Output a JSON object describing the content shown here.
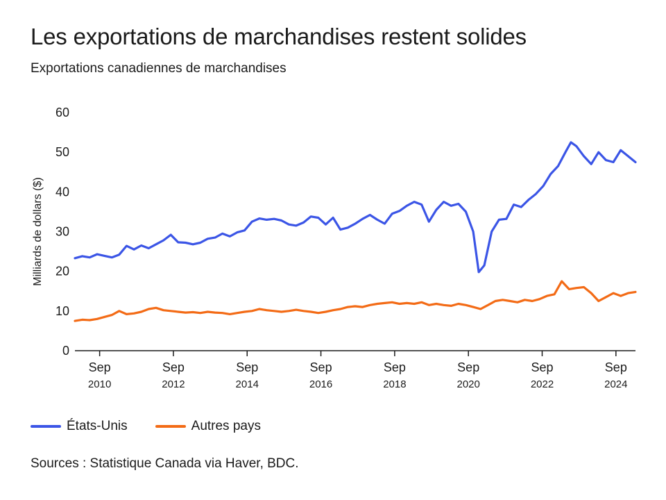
{
  "header": {
    "title": "Les exportations de marchandises restent solides",
    "subtitle": "Exportations canadiennes de marchandises"
  },
  "source": "Sources : Statistique Canada via Haver, BDC.",
  "chart_data": {
    "type": "line",
    "ylabel": "Milliards de dollars ($)",
    "ylim": [
      0,
      60
    ],
    "y_ticks": [
      "0",
      "10",
      "20",
      "30",
      "40",
      "50",
      "60"
    ],
    "x_ticks": [
      {
        "month": "Sep",
        "year": "2010",
        "x": 2010.67
      },
      {
        "month": "Sep",
        "year": "2012",
        "x": 2012.67
      },
      {
        "month": "Sep",
        "year": "2014",
        "x": 2014.67
      },
      {
        "month": "Sep",
        "year": "2016",
        "x": 2016.67
      },
      {
        "month": "Sep",
        "year": "2018",
        "x": 2018.67
      },
      {
        "month": "Sep",
        "year": "2020",
        "x": 2020.67
      },
      {
        "month": "Sep",
        "year": "2022",
        "x": 2022.67
      },
      {
        "month": "Sep",
        "year": "2024",
        "x": 2024.67
      }
    ],
    "xlim": [
      2010.0,
      2025.2
    ],
    "grid": false,
    "legend_position": "bottom-left",
    "series": [
      {
        "name": "États-Unis",
        "color": "#3b55e6",
        "points": [
          [
            2010.0,
            23.3
          ],
          [
            2010.2,
            23.8
          ],
          [
            2010.4,
            23.5
          ],
          [
            2010.6,
            24.3
          ],
          [
            2010.8,
            23.9
          ],
          [
            2011.0,
            23.5
          ],
          [
            2011.2,
            24.2
          ],
          [
            2011.4,
            26.4
          ],
          [
            2011.6,
            25.5
          ],
          [
            2011.8,
            26.5
          ],
          [
            2012.0,
            25.8
          ],
          [
            2012.2,
            26.8
          ],
          [
            2012.4,
            27.8
          ],
          [
            2012.6,
            29.2
          ],
          [
            2012.8,
            27.3
          ],
          [
            2013.0,
            27.2
          ],
          [
            2013.2,
            26.8
          ],
          [
            2013.4,
            27.2
          ],
          [
            2013.6,
            28.2
          ],
          [
            2013.8,
            28.5
          ],
          [
            2014.0,
            29.5
          ],
          [
            2014.2,
            28.8
          ],
          [
            2014.4,
            29.8
          ],
          [
            2014.6,
            30.3
          ],
          [
            2014.8,
            32.5
          ],
          [
            2015.0,
            33.3
          ],
          [
            2015.2,
            33.0
          ],
          [
            2015.4,
            33.2
          ],
          [
            2015.6,
            32.8
          ],
          [
            2015.8,
            31.8
          ],
          [
            2016.0,
            31.5
          ],
          [
            2016.2,
            32.3
          ],
          [
            2016.4,
            33.8
          ],
          [
            2016.6,
            33.5
          ],
          [
            2016.8,
            31.8
          ],
          [
            2017.0,
            33.5
          ],
          [
            2017.2,
            30.5
          ],
          [
            2017.4,
            31.0
          ],
          [
            2017.6,
            32.0
          ],
          [
            2017.8,
            33.2
          ],
          [
            2018.0,
            34.2
          ],
          [
            2018.2,
            33.0
          ],
          [
            2018.4,
            32.0
          ],
          [
            2018.6,
            34.5
          ],
          [
            2018.8,
            35.2
          ],
          [
            2019.0,
            36.5
          ],
          [
            2019.2,
            37.5
          ],
          [
            2019.4,
            36.8
          ],
          [
            2019.6,
            32.5
          ],
          [
            2019.8,
            35.5
          ],
          [
            2020.0,
            37.5
          ],
          [
            2020.2,
            36.5
          ],
          [
            2020.4,
            37.0
          ],
          [
            2020.6,
            35.0
          ],
          [
            2020.8,
            30.0
          ],
          [
            2020.95,
            19.8
          ],
          [
            2021.1,
            21.5
          ],
          [
            2021.3,
            30.0
          ],
          [
            2021.5,
            33.0
          ],
          [
            2021.7,
            33.2
          ],
          [
            2021.9,
            36.8
          ],
          [
            2022.1,
            36.2
          ],
          [
            2022.3,
            38.0
          ],
          [
            2022.5,
            39.5
          ],
          [
            2022.7,
            41.5
          ],
          [
            2022.9,
            44.5
          ],
          [
            2023.1,
            46.5
          ],
          [
            2023.3,
            50.0
          ],
          [
            2023.45,
            52.5
          ],
          [
            2023.6,
            51.5
          ],
          [
            2023.8,
            49.0
          ],
          [
            2024.0,
            47.0
          ],
          [
            2024.2,
            50.0
          ],
          [
            2024.4,
            48.0
          ],
          [
            2024.6,
            47.5
          ],
          [
            2024.8,
            50.5
          ],
          [
            2025.0,
            49.0
          ],
          [
            2025.2,
            47.5
          ]
        ]
      },
      {
        "name": "Autres pays",
        "color": "#f36b16",
        "points": [
          [
            2010.0,
            7.5
          ],
          [
            2010.2,
            7.8
          ],
          [
            2010.4,
            7.7
          ],
          [
            2010.6,
            8.0
          ],
          [
            2010.8,
            8.5
          ],
          [
            2011.0,
            9.0
          ],
          [
            2011.2,
            10.0
          ],
          [
            2011.4,
            9.2
          ],
          [
            2011.6,
            9.4
          ],
          [
            2011.8,
            9.8
          ],
          [
            2012.0,
            10.5
          ],
          [
            2012.2,
            10.8
          ],
          [
            2012.4,
            10.2
          ],
          [
            2012.6,
            10.0
          ],
          [
            2012.8,
            9.8
          ],
          [
            2013.0,
            9.6
          ],
          [
            2013.2,
            9.7
          ],
          [
            2013.4,
            9.5
          ],
          [
            2013.6,
            9.8
          ],
          [
            2013.8,
            9.6
          ],
          [
            2014.0,
            9.5
          ],
          [
            2014.2,
            9.2
          ],
          [
            2014.4,
            9.5
          ],
          [
            2014.6,
            9.8
          ],
          [
            2014.8,
            10.0
          ],
          [
            2015.0,
            10.5
          ],
          [
            2015.2,
            10.2
          ],
          [
            2015.4,
            10.0
          ],
          [
            2015.6,
            9.8
          ],
          [
            2015.8,
            10.0
          ],
          [
            2016.0,
            10.3
          ],
          [
            2016.2,
            10.0
          ],
          [
            2016.4,
            9.8
          ],
          [
            2016.6,
            9.5
          ],
          [
            2016.8,
            9.8
          ],
          [
            2017.0,
            10.2
          ],
          [
            2017.2,
            10.5
          ],
          [
            2017.4,
            11.0
          ],
          [
            2017.6,
            11.2
          ],
          [
            2017.8,
            11.0
          ],
          [
            2018.0,
            11.5
          ],
          [
            2018.2,
            11.8
          ],
          [
            2018.4,
            12.0
          ],
          [
            2018.6,
            12.2
          ],
          [
            2018.8,
            11.8
          ],
          [
            2019.0,
            12.0
          ],
          [
            2019.2,
            11.8
          ],
          [
            2019.4,
            12.2
          ],
          [
            2019.6,
            11.5
          ],
          [
            2019.8,
            11.8
          ],
          [
            2020.0,
            11.5
          ],
          [
            2020.2,
            11.3
          ],
          [
            2020.4,
            11.8
          ],
          [
            2020.6,
            11.5
          ],
          [
            2020.8,
            11.0
          ],
          [
            2021.0,
            10.5
          ],
          [
            2021.2,
            11.5
          ],
          [
            2021.4,
            12.5
          ],
          [
            2021.6,
            12.8
          ],
          [
            2021.8,
            12.5
          ],
          [
            2022.0,
            12.2
          ],
          [
            2022.2,
            12.8
          ],
          [
            2022.4,
            12.5
          ],
          [
            2022.6,
            13.0
          ],
          [
            2022.8,
            13.8
          ],
          [
            2023.0,
            14.2
          ],
          [
            2023.2,
            17.5
          ],
          [
            2023.4,
            15.5
          ],
          [
            2023.6,
            15.8
          ],
          [
            2023.8,
            16.0
          ],
          [
            2024.0,
            14.5
          ],
          [
            2024.2,
            12.5
          ],
          [
            2024.4,
            13.5
          ],
          [
            2024.6,
            14.5
          ],
          [
            2024.8,
            13.8
          ],
          [
            2025.0,
            14.5
          ],
          [
            2025.2,
            14.8
          ]
        ]
      }
    ]
  }
}
